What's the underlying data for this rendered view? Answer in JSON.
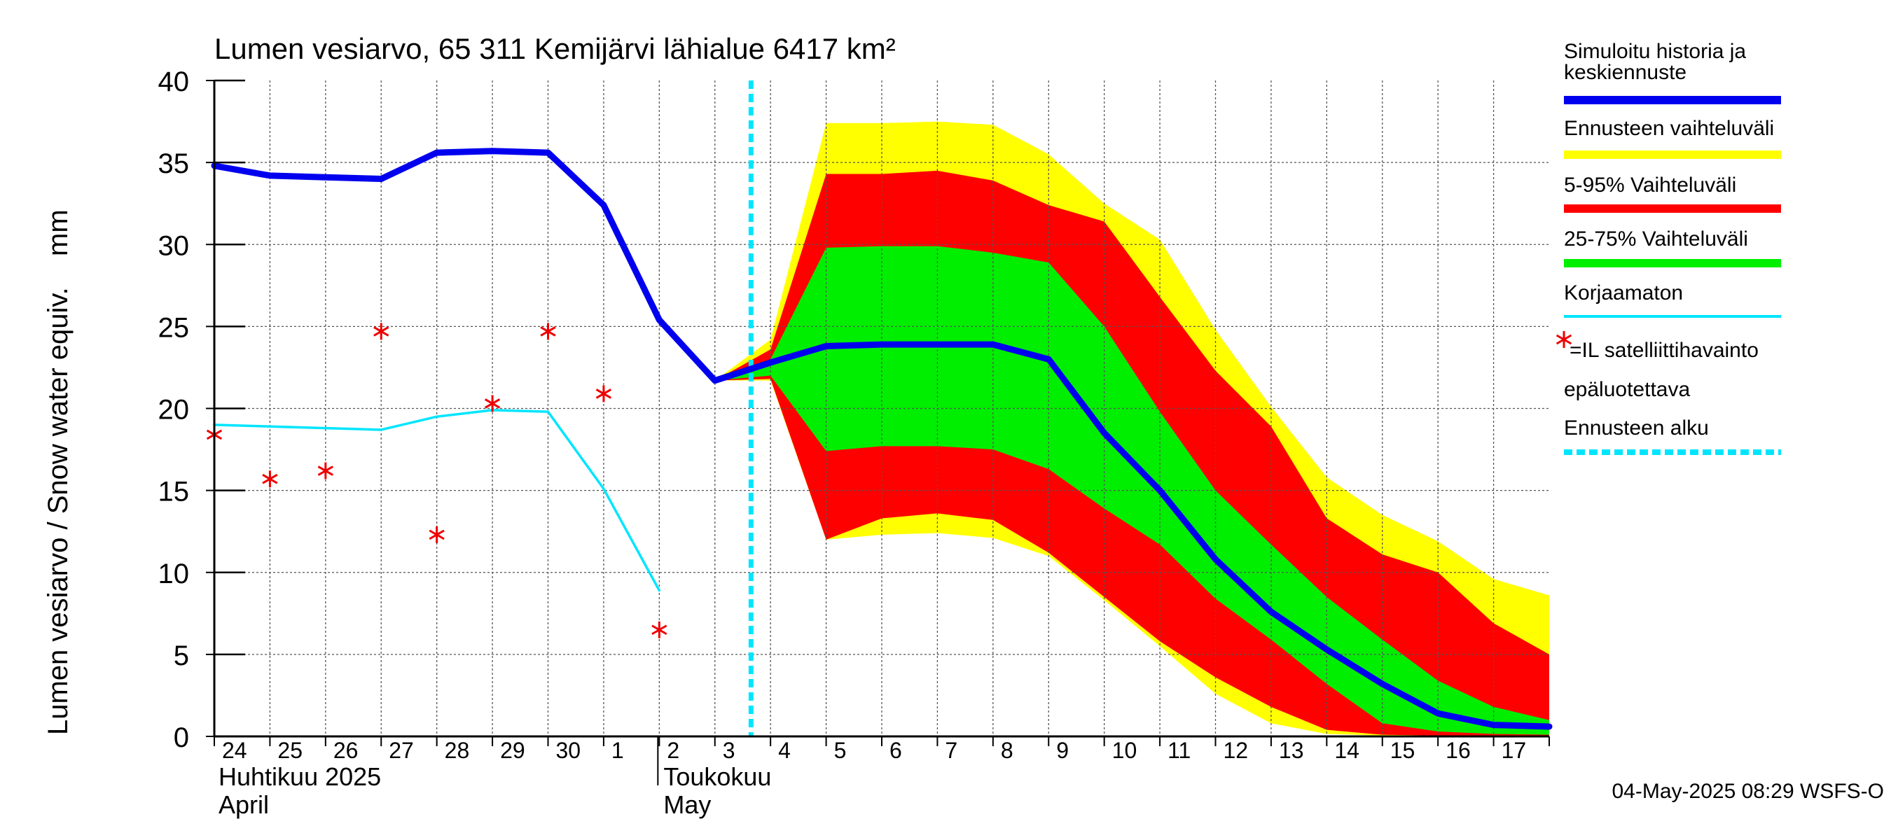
{
  "chart_data": {
    "type": "area",
    "title": "Lumen vesiarvo, 65 311 Kemijärvi lähialue 6417 km²",
    "ylabel": "Lumen vesiarvo / Snow water equiv.    mm",
    "ylim": [
      0,
      40
    ],
    "yticks": [
      "0",
      "5",
      "10",
      "15",
      "20",
      "25",
      "30",
      "35",
      "40"
    ],
    "grid": true,
    "legend_position": "right",
    "x_start": "2025-04-24",
    "x_end": "2025-05-17",
    "x_tick_labels": [
      "24",
      "25",
      "26",
      "27",
      "28",
      "29",
      "30",
      "1",
      "2",
      "3",
      "4",
      "5",
      "6",
      "7",
      "8",
      "9",
      "10",
      "11",
      "12",
      "13",
      "14",
      "15",
      "16",
      "17"
    ],
    "month_labels": [
      {
        "line1": "Huhtikuu  2025",
        "line2": "April",
        "at": "2025-04-24"
      },
      {
        "line1": "Toukokuu",
        "line2": "May",
        "at": "2025-05-02"
      }
    ],
    "forecast_start": "2025-05-04",
    "series": [
      {
        "name": "Simuloitu historia ja keskiennuste",
        "color": "#0000ee",
        "x": [
          "2025-04-24",
          "2025-04-25",
          "2025-04-26",
          "2025-04-27",
          "2025-04-28",
          "2025-04-29",
          "2025-04-30",
          "2025-05-01",
          "2025-05-02",
          "2025-05-03",
          "2025-05-04",
          "2025-05-05",
          "2025-05-06",
          "2025-05-07",
          "2025-05-08",
          "2025-05-09",
          "2025-05-10",
          "2025-05-11",
          "2025-05-12",
          "2025-05-13",
          "2025-05-14",
          "2025-05-15",
          "2025-05-16",
          "2025-05-17",
          "2025-05-18"
        ],
        "y": [
          34.8,
          34.2,
          34.1,
          34.0,
          35.6,
          35.7,
          35.6,
          32.4,
          25.4,
          21.7,
          22.8,
          23.8,
          23.9,
          23.9,
          23.9,
          23.0,
          18.5,
          15.0,
          10.8,
          7.6,
          5.3,
          3.2,
          1.4,
          0.7,
          0.6
        ]
      },
      {
        "name": "Korjaamaton",
        "color": "#00e5ff",
        "x": [
          "2025-04-24",
          "2025-04-25",
          "2025-04-26",
          "2025-04-27",
          "2025-04-28",
          "2025-04-29",
          "2025-04-30",
          "2025-05-01",
          "2025-05-02"
        ],
        "y": [
          19.0,
          18.9,
          18.8,
          18.7,
          19.5,
          19.9,
          19.8,
          15.1,
          8.9
        ]
      },
      {
        "name": "=IL satelliittihavainto epäluotettava",
        "color": "#ee0000",
        "marker": "*",
        "x": [
          "2025-04-24",
          "2025-04-25",
          "2025-04-26",
          "2025-04-27",
          "2025-04-28",
          "2025-04-29",
          "2025-04-30",
          "2025-05-01",
          "2025-05-02"
        ],
        "y": [
          18.4,
          15.7,
          16.2,
          24.7,
          12.3,
          20.3,
          24.7,
          20.9,
          6.5
        ]
      }
    ],
    "bands": {
      "x": [
        "2025-05-03",
        "2025-05-04",
        "2025-05-05",
        "2025-05-06",
        "2025-05-07",
        "2025-05-08",
        "2025-05-09",
        "2025-05-10",
        "2025-05-11",
        "2025-05-12",
        "2025-05-13",
        "2025-05-14",
        "2025-05-15",
        "2025-05-16",
        "2025-05-17",
        "2025-05-18"
      ],
      "items": [
        {
          "name": "Ennusteen vaihteluväli",
          "color": "#ffff00",
          "lower": [
            21.7,
            21.7,
            12.0,
            12.3,
            12.4,
            12.1,
            11.0,
            8.3,
            5.5,
            2.6,
            0.8,
            0.15,
            0.05,
            0.02,
            0.0,
            0.0
          ],
          "upper": [
            21.7,
            24.2,
            37.4,
            37.4,
            37.5,
            37.3,
            35.5,
            32.5,
            30.3,
            24.8,
            20.1,
            15.8,
            13.5,
            11.9,
            9.6,
            8.6
          ]
        },
        {
          "name": "5-95% Vaihteluväli",
          "color": "#ff0000",
          "lower": [
            21.7,
            21.8,
            12.0,
            13.3,
            13.6,
            13.2,
            11.2,
            8.5,
            5.8,
            3.6,
            1.8,
            0.4,
            0.1,
            0.05,
            0.02,
            0.0
          ],
          "upper": [
            21.7,
            23.6,
            34.3,
            34.3,
            34.5,
            33.9,
            32.4,
            31.4,
            26.8,
            22.3,
            18.9,
            13.3,
            11.1,
            10.0,
            6.9,
            5.0
          ]
        },
        {
          "name": "25-75% Vaihteluväli",
          "color": "#00ee00",
          "lower": [
            21.7,
            22.0,
            17.4,
            17.7,
            17.7,
            17.5,
            16.3,
            13.9,
            11.7,
            8.4,
            5.9,
            3.2,
            0.8,
            0.3,
            0.15,
            0.1
          ],
          "upper": [
            21.7,
            23.0,
            29.8,
            29.9,
            29.9,
            29.5,
            28.9,
            25.0,
            19.8,
            15.0,
            11.7,
            8.5,
            5.9,
            3.4,
            1.8,
            1.0
          ]
        }
      ]
    },
    "legend": [
      {
        "label": "Simuloitu historia ja keskiennuste",
        "color": "#0000ee",
        "style": "thick-line"
      },
      {
        "label": "Ennusteen vaihteluväli",
        "color": "#ffff00",
        "style": "thick-line"
      },
      {
        "label": "5-95% Vaihteluväli",
        "color": "#ff0000",
        "style": "thick-line"
      },
      {
        "label": "25-75% Vaihteluväli",
        "color": "#00ee00",
        "style": "thick-line"
      },
      {
        "label": "Korjaamaton",
        "color": "#00e5ff",
        "style": "thin-line"
      },
      {
        "label": "=IL satelliittihavainto",
        "label2": "epäluotettava",
        "color": "#ee0000",
        "style": "marker"
      },
      {
        "label": "Ennusteen alku",
        "color": "#00e5ff",
        "style": "dashed-line"
      }
    ]
  },
  "footer": "04-May-2025 08:29 WSFS-O"
}
